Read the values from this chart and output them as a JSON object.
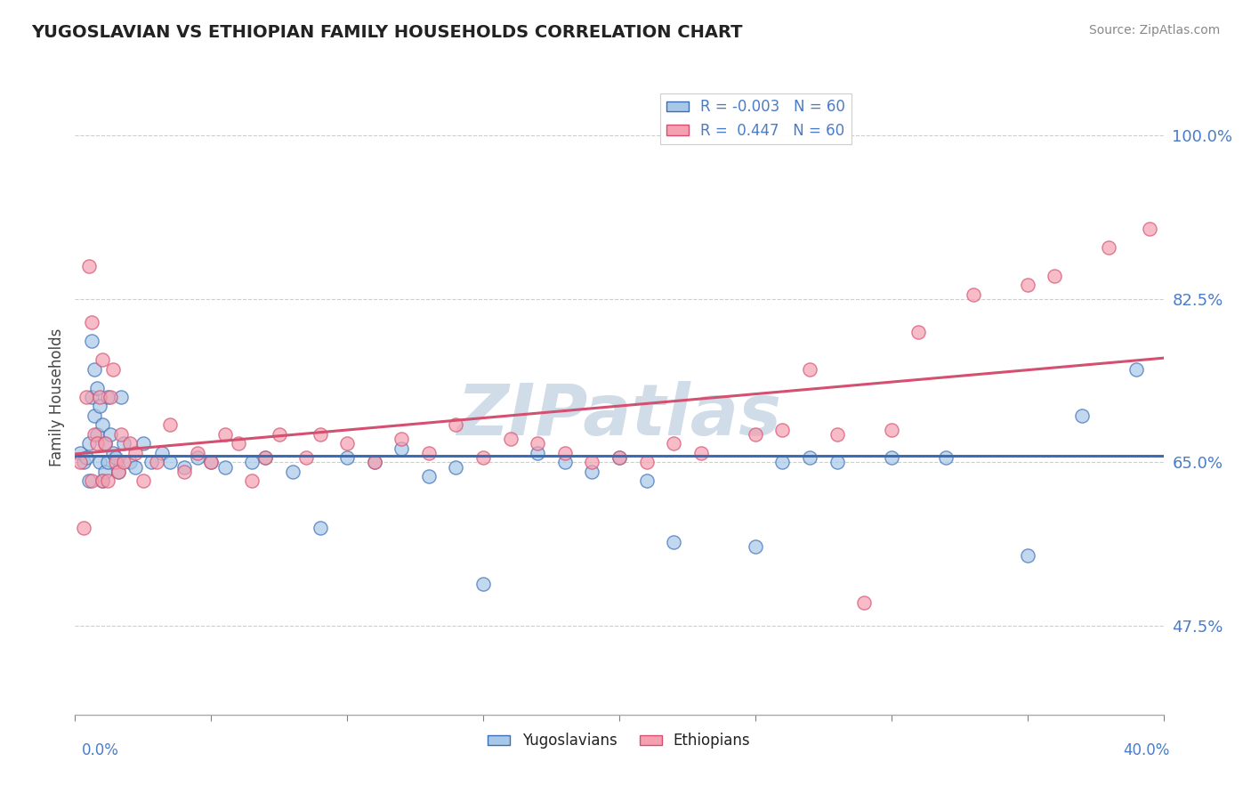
{
  "title": "YUGOSLAVIAN VS ETHIOPIAN FAMILY HOUSEHOLDS CORRELATION CHART",
  "source": "Source: ZipAtlas.com",
  "ylabel": "Family Households",
  "yticks": [
    47.5,
    65.0,
    82.5,
    100.0
  ],
  "ytick_labels": [
    "47.5%",
    "65.0%",
    "82.5%",
    "100.0%"
  ],
  "xmin": 0.0,
  "xmax": 40.0,
  "ymin": 38.0,
  "ymax": 106.0,
  "r_yugo": -0.003,
  "r_eth": 0.447,
  "n_yugo": 60,
  "n_eth": 60,
  "color_yugo": "#a8c8e8",
  "color_eth": "#f4a0b0",
  "color_yugo_line": "#3a6db5",
  "color_eth_line": "#d45070",
  "watermark_color": "#d0dce8",
  "background_color": "#ffffff",
  "grid_color": "#c8c8c8",
  "tick_color": "#4a7cc7",
  "yugo_x": [
    0.2,
    0.3,
    0.4,
    0.5,
    0.5,
    0.6,
    0.6,
    0.7,
    0.7,
    0.8,
    0.8,
    0.9,
    0.9,
    1.0,
    1.0,
    1.1,
    1.1,
    1.2,
    1.2,
    1.3,
    1.4,
    1.5,
    1.6,
    1.7,
    1.8,
    2.0,
    2.2,
    2.5,
    2.8,
    3.2,
    3.5,
    4.0,
    4.5,
    5.0,
    5.5,
    6.5,
    7.0,
    8.0,
    9.0,
    10.0,
    11.0,
    12.0,
    13.0,
    14.0,
    15.0,
    17.0,
    18.0,
    19.0,
    20.0,
    21.0,
    22.0,
    25.0,
    26.0,
    27.0,
    28.0,
    30.0,
    32.0,
    35.0,
    37.0,
    39.0
  ],
  "yugo_y": [
    66.0,
    65.0,
    65.5,
    67.0,
    63.0,
    78.0,
    72.0,
    75.0,
    70.0,
    73.0,
    68.0,
    71.0,
    65.0,
    69.0,
    63.0,
    67.0,
    64.0,
    72.0,
    65.0,
    68.0,
    66.0,
    65.5,
    64.0,
    72.0,
    67.0,
    65.0,
    64.5,
    67.0,
    65.0,
    66.0,
    65.0,
    64.5,
    65.5,
    65.0,
    64.5,
    65.0,
    65.5,
    64.0,
    58.0,
    65.5,
    65.0,
    66.5,
    63.5,
    64.5,
    52.0,
    66.0,
    65.0,
    64.0,
    65.5,
    63.0,
    56.5,
    56.0,
    65.0,
    65.5,
    65.0,
    65.5,
    65.5,
    55.0,
    70.0,
    75.0
  ],
  "eth_x": [
    0.2,
    0.3,
    0.4,
    0.5,
    0.6,
    0.6,
    0.7,
    0.8,
    0.9,
    1.0,
    1.0,
    1.1,
    1.2,
    1.3,
    1.4,
    1.5,
    1.6,
    1.7,
    1.8,
    2.0,
    2.2,
    2.5,
    3.0,
    3.5,
    4.0,
    4.5,
    5.0,
    5.5,
    6.0,
    6.5,
    7.0,
    7.5,
    8.5,
    9.0,
    10.0,
    11.0,
    12.0,
    13.0,
    14.0,
    15.0,
    16.0,
    17.0,
    18.0,
    19.0,
    20.0,
    21.0,
    22.0,
    23.0,
    25.0,
    26.0,
    27.0,
    28.0,
    29.0,
    30.0,
    31.0,
    33.0,
    35.0,
    36.0,
    38.0,
    39.5
  ],
  "eth_y": [
    65.0,
    58.0,
    72.0,
    86.0,
    63.0,
    80.0,
    68.0,
    67.0,
    72.0,
    76.0,
    63.0,
    67.0,
    63.0,
    72.0,
    75.0,
    65.0,
    64.0,
    68.0,
    65.0,
    67.0,
    66.0,
    63.0,
    65.0,
    69.0,
    64.0,
    66.0,
    65.0,
    68.0,
    67.0,
    63.0,
    65.5,
    68.0,
    65.5,
    68.0,
    67.0,
    65.0,
    67.5,
    66.0,
    69.0,
    65.5,
    67.5,
    67.0,
    66.0,
    65.0,
    65.5,
    65.0,
    67.0,
    66.0,
    68.0,
    68.5,
    75.0,
    68.0,
    50.0,
    68.5,
    79.0,
    83.0,
    84.0,
    85.0,
    88.0,
    90.0
  ]
}
